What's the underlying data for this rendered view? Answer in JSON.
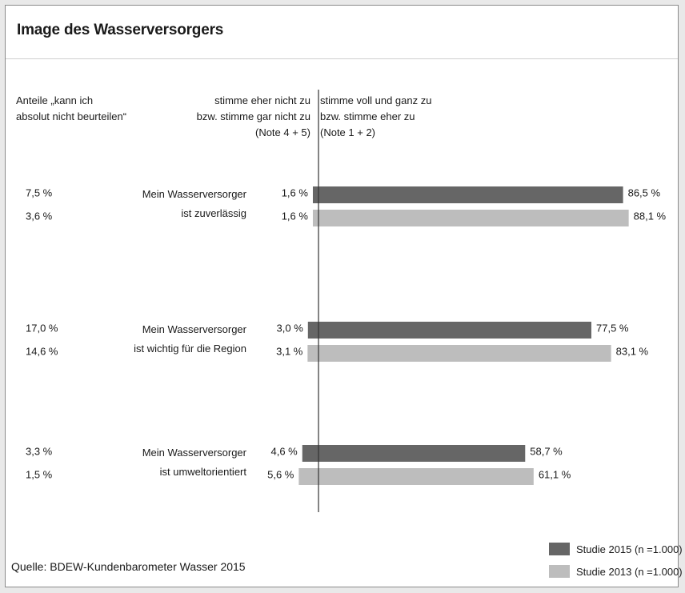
{
  "title": "Image des Wasserversorgers",
  "header": {
    "left": [
      "Anteile „kann ich",
      "absolut nicht beurteilen“"
    ],
    "middle": [
      "stimme eher nicht zu",
      "bzw. stimme gar nicht zu",
      "(Note 4 + 5)"
    ],
    "right": [
      "stimme voll und ganz zu",
      "bzw. stimme eher zu",
      "(Note 1 + 2)"
    ]
  },
  "source": "Quelle: BDEW-Kundenbarometer Wasser 2015",
  "legend": [
    {
      "label": "Studie 2015 (n =1.000)",
      "color": "#666666"
    },
    {
      "label": "Studie 2013 (n =1.000)",
      "color": "#bdbdbd"
    }
  ],
  "chart_data": {
    "type": "bar",
    "orientation": "horizontal-diverging",
    "title": "Image des Wasserversorgers",
    "categories": [
      [
        "Mein Wasserversorger",
        "ist zuverlässig"
      ],
      [
        "Mein Wasserversorger",
        "ist wichtig für die Region"
      ],
      [
        "Mein Wasserversorger",
        "ist umweltorientiert"
      ]
    ],
    "series": [
      {
        "name": "Studie 2015 (n =1.000)",
        "color": "#666666",
        "agree": [
          86.5,
          77.5,
          58.7
        ],
        "disagree": [
          1.6,
          3.0,
          4.6
        ],
        "cannot_judge": [
          7.5,
          17.0,
          3.3
        ],
        "agree_labels": [
          "86,5 %",
          "77,5 %",
          "58,7 %"
        ],
        "disagree_labels": [
          "1,6 %",
          "3,0 %",
          "4,6 %"
        ],
        "cannot_judge_labels": [
          "7,5 %",
          "17,0 %",
          "3,3 %"
        ]
      },
      {
        "name": "Studie 2013 (n =1.000)",
        "color": "#bdbdbd",
        "agree": [
          88.1,
          83.1,
          61.1
        ],
        "disagree": [
          1.6,
          3.1,
          5.6
        ],
        "cannot_judge": [
          3.6,
          14.6,
          1.5
        ],
        "agree_labels": [
          "88,1 %",
          "83,1 %",
          "61,1 %"
        ],
        "disagree_labels": [
          "1,6 %",
          "3,1 %",
          "5,6 %"
        ],
        "cannot_judge_labels": [
          "3,6 %",
          "14,6 %",
          "1,5 %"
        ]
      }
    ]
  }
}
